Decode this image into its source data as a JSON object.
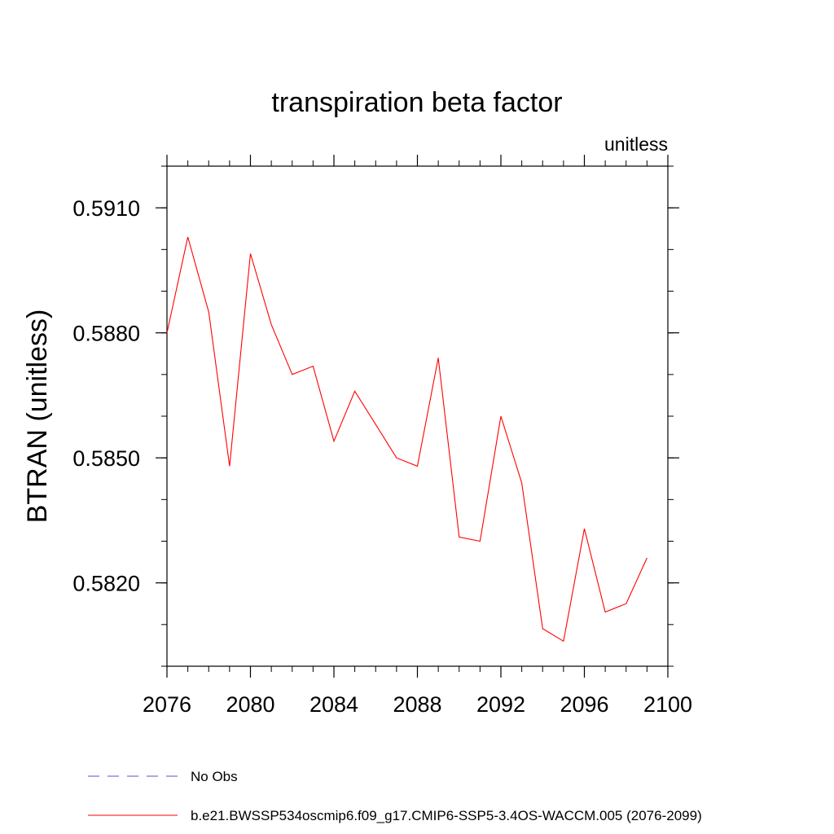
{
  "chart_data": {
    "type": "line",
    "title": "transpiration beta factor",
    "units_label": "unitless",
    "xlabel": "",
    "ylabel": "BTRAN  (unitless)",
    "xlim": [
      2076,
      2100
    ],
    "ylim": [
      0.58,
      0.592
    ],
    "x_ticks": [
      2076,
      2080,
      2084,
      2088,
      2092,
      2096,
      2100
    ],
    "x_tick_labels": [
      "2076",
      "2080",
      "2084",
      "2088",
      "2092",
      "2096",
      "2100"
    ],
    "x_minor_step": 1,
    "y_ticks": [
      0.582,
      0.585,
      0.588,
      0.591
    ],
    "y_tick_labels": [
      "0.5820",
      "0.5850",
      "0.5880",
      "0.5910"
    ],
    "y_minor_step": 0.001,
    "series": [
      {
        "name": "b.e21.BWSSP534oscmip6.f09_g17.CMIP6-SSP5-3.4OS-WACCM.005 (2076-2099)",
        "color": "#ff0000",
        "x": [
          2076,
          2077,
          2078,
          2079,
          2080,
          2081,
          2082,
          2083,
          2084,
          2085,
          2086,
          2087,
          2088,
          2089,
          2090,
          2091,
          2092,
          2093,
          2094,
          2095,
          2096,
          2097,
          2098,
          2099
        ],
        "values": [
          0.588,
          0.5903,
          0.5885,
          0.5848,
          0.5899,
          0.5882,
          0.587,
          0.5872,
          0.5854,
          0.5866,
          0.5858,
          0.585,
          0.5848,
          0.5874,
          0.5831,
          0.583,
          0.586,
          0.5844,
          0.5809,
          0.5806,
          0.5833,
          0.5813,
          0.5815,
          0.5826
        ]
      }
    ],
    "legend": [
      {
        "label": "No Obs",
        "color": "#5a4fcf",
        "style": "dashed"
      },
      {
        "label": "b.e21.BWSSP534oscmip6.f09_g17.CMIP6-SSP5-3.4OS-WACCM.005 (2076-2099)",
        "color": "#ff0000",
        "style": "solid"
      }
    ]
  }
}
